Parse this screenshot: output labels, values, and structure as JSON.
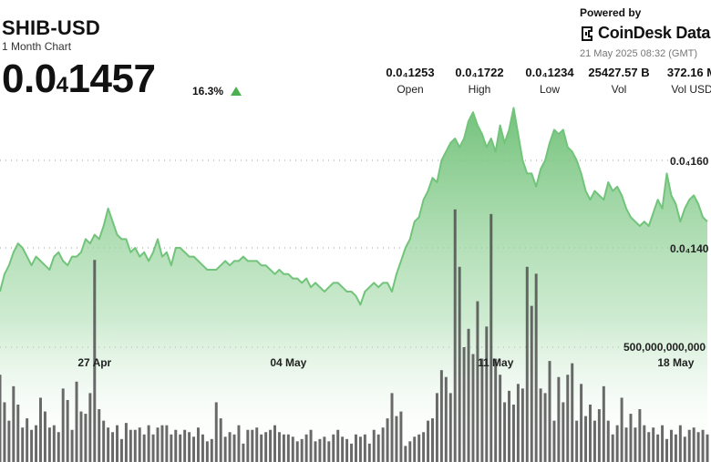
{
  "header": {
    "symbol": "SHIB-USD",
    "range_label": "1 Month Chart",
    "price_main": "0.0",
    "price_sub": "4",
    "price_tail": "1457",
    "change_pct": "16.3%",
    "change_direction": "up"
  },
  "stats": [
    {
      "value": "0.0₄1253",
      "label": "Open"
    },
    {
      "value": "0.0₄1722",
      "label": "High"
    },
    {
      "value": "0.0₄1234",
      "label": "Low"
    },
    {
      "value": "25427.57 B",
      "label": "Vol"
    },
    {
      "value": "372.16 M",
      "label": "Vol USD"
    }
  ],
  "branding": {
    "powered_by": "Powered by",
    "name": "CoinDesk Data",
    "timestamp": "21 May 2025 08:32 (GMT)"
  },
  "colors": {
    "line": "#71c47a",
    "area_top": "#6cbf74",
    "volume_bar": "#4f4f4f",
    "up_triangle": "#4caf50"
  },
  "chart_data": {
    "type": "area",
    "price_axis_labels": [
      "0.0₄160",
      "0.0₄140"
    ],
    "price_axis_values": [
      1.6e-05,
      1.4e-05
    ],
    "volume_axis_label": "500,000,000,000",
    "volume_axis_value": 500000000000,
    "x_tick_labels": [
      "27 Apr",
      "04 May",
      "11 May",
      "18 May"
    ],
    "x_tick_index": [
      21,
      64,
      110,
      150
    ],
    "grid": "dotted horizontal",
    "price_range": [
      1.2e-05,
      1.82e-05
    ],
    "volume_range": [
      0,
      1200000000000
    ],
    "price": [
      1.3e-05,
      1.34e-05,
      1.36e-05,
      1.39e-05,
      1.41e-05,
      1.4e-05,
      1.38e-05,
      1.36e-05,
      1.38e-05,
      1.37e-05,
      1.36e-05,
      1.35e-05,
      1.38e-05,
      1.39e-05,
      1.37e-05,
      1.36e-05,
      1.38e-05,
      1.38e-05,
      1.39e-05,
      1.42e-05,
      1.41e-05,
      1.43e-05,
      1.42e-05,
      1.45e-05,
      1.49e-05,
      1.46e-05,
      1.43e-05,
      1.42e-05,
      1.42e-05,
      1.39e-05,
      1.4e-05,
      1.38e-05,
      1.39e-05,
      1.37e-05,
      1.39e-05,
      1.42e-05,
      1.38e-05,
      1.39e-05,
      1.36e-05,
      1.4e-05,
      1.4e-05,
      1.39e-05,
      1.38e-05,
      1.38e-05,
      1.37e-05,
      1.36e-05,
      1.35e-05,
      1.35e-05,
      1.35e-05,
      1.36e-05,
      1.37e-05,
      1.36e-05,
      1.37e-05,
      1.37e-05,
      1.38e-05,
      1.37e-05,
      1.37e-05,
      1.37e-05,
      1.36e-05,
      1.36e-05,
      1.35e-05,
      1.34e-05,
      1.35e-05,
      1.34e-05,
      1.34e-05,
      1.33e-05,
      1.33e-05,
      1.32e-05,
      1.33e-05,
      1.31e-05,
      1.32e-05,
      1.31e-05,
      1.3e-05,
      1.31e-05,
      1.32e-05,
      1.32e-05,
      1.31e-05,
      1.3e-05,
      1.3e-05,
      1.29e-05,
      1.27e-05,
      1.3e-05,
      1.31e-05,
      1.32e-05,
      1.31e-05,
      1.32e-05,
      1.32e-05,
      1.3e-05,
      1.34e-05,
      1.37e-05,
      1.4e-05,
      1.42e-05,
      1.46e-05,
      1.47e-05,
      1.51e-05,
      1.53e-05,
      1.56e-05,
      1.55e-05,
      1.6e-05,
      1.62e-05,
      1.64e-05,
      1.65e-05,
      1.63e-05,
      1.65e-05,
      1.69e-05,
      1.71e-05,
      1.68e-05,
      1.66e-05,
      1.63e-05,
      1.65e-05,
      1.62e-05,
      1.68e-05,
      1.64e-05,
      1.67e-05,
      1.72e-05,
      1.66e-05,
      1.6e-05,
      1.57e-05,
      1.57e-05,
      1.54e-05,
      1.58e-05,
      1.6e-05,
      1.64e-05,
      1.67e-05,
      1.66e-05,
      1.67e-05,
      1.63e-05,
      1.62e-05,
      1.6e-05,
      1.57e-05,
      1.53e-05,
      1.51e-05,
      1.53e-05,
      1.52e-05,
      1.51e-05,
      1.55e-05,
      1.53e-05,
      1.54e-05,
      1.52e-05,
      1.49e-05,
      1.47e-05,
      1.46e-05,
      1.45e-05,
      1.46e-05,
      1.45e-05,
      1.48e-05,
      1.51e-05,
      1.49e-05,
      1.57e-05,
      1.52e-05,
      1.5e-05,
      1.46e-05,
      1.49e-05,
      1.51e-05,
      1.52e-05,
      1.5e-05,
      1.47e-05,
      1.46e-05
    ],
    "volume": [
      380,
      260,
      180,
      330,
      250,
      150,
      190,
      140,
      160,
      280,
      220,
      150,
      160,
      130,
      320,
      270,
      140,
      350,
      220,
      210,
      300,
      880,
      230,
      180,
      150,
      130,
      160,
      100,
      170,
      140,
      140,
      150,
      120,
      160,
      120,
      150,
      160,
      160,
      120,
      140,
      120,
      140,
      130,
      110,
      150,
      120,
      90,
      100,
      260,
      190,
      110,
      130,
      120,
      160,
      80,
      140,
      140,
      150,
      120,
      130,
      140,
      160,
      130,
      120,
      120,
      110,
      90,
      100,
      120,
      140,
      90,
      100,
      110,
      90,
      120,
      140,
      110,
      100,
      80,
      120,
      110,
      120,
      80,
      140,
      120,
      150,
      190,
      300,
      200,
      220,
      70,
      90,
      110,
      120,
      130,
      180,
      190,
      300,
      400,
      370,
      300,
      1100,
      850,
      500,
      580,
      470,
      700,
      450,
      590,
      1080,
      450,
      380,
      260,
      310,
      250,
      340,
      320,
      850,
      680,
      820,
      320,
      300,
      440,
      180,
      370,
      260,
      380,
      430,
      180,
      340,
      200,
      250,
      180,
      230,
      330,
      180,
      120,
      160,
      280,
      150,
      210,
      150,
      230,
      160,
      130,
      150,
      120,
      160,
      100,
      140,
      120,
      160,
      110,
      140,
      150,
      130,
      140,
      120
    ]
  }
}
